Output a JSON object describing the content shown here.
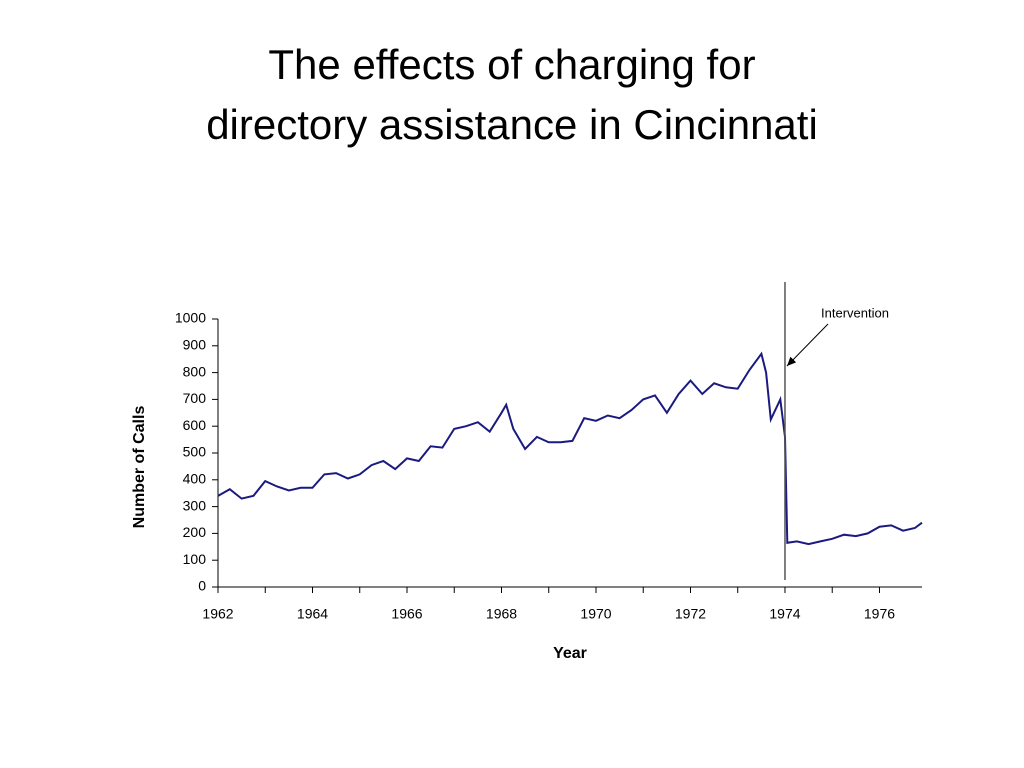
{
  "chart_data": {
    "type": "line",
    "title": "The effects of charging for directory assistance in Cincinnati",
    "x_label": "Year",
    "y_label": "Number of Calls",
    "annotation": {
      "text": "Intervention",
      "x": 1974
    },
    "x": [
      1962,
      1962.25,
      1962.5,
      1962.75,
      1963,
      1963.25,
      1963.5,
      1963.75,
      1964,
      1964.25,
      1964.5,
      1964.75,
      1965,
      1965.25,
      1965.5,
      1965.75,
      1966,
      1966.25,
      1966.5,
      1966.75,
      1967,
      1967.25,
      1967.5,
      1967.75,
      1968,
      1968.1,
      1968.25,
      1968.5,
      1968.75,
      1969,
      1969.25,
      1969.5,
      1969.75,
      1970,
      1970.25,
      1970.5,
      1970.75,
      1971,
      1971.25,
      1971.5,
      1971.75,
      1972,
      1972.25,
      1972.5,
      1972.75,
      1973,
      1973.25,
      1973.5,
      1973.6,
      1973.7,
      1973.9,
      1974,
      1974.05,
      1974.25,
      1974.5,
      1974.75,
      1975,
      1975.25,
      1975.5,
      1975.75,
      1976,
      1976.25,
      1976.5,
      1976.75,
      1976.9
    ],
    "series": [
      {
        "name": "Number of Calls",
        "color": "#1a1a80",
        "values": [
          340,
          365,
          330,
          340,
          395,
          375,
          360,
          370,
          370,
          420,
          425,
          405,
          420,
          455,
          470,
          440,
          480,
          470,
          525,
          520,
          590,
          600,
          615,
          580,
          650,
          680,
          590,
          515,
          560,
          540,
          540,
          545,
          630,
          620,
          640,
          630,
          660,
          700,
          715,
          650,
          720,
          770,
          720,
          760,
          745,
          740,
          810,
          870,
          800,
          625,
          700,
          560,
          165,
          170,
          160,
          170,
          180,
          195,
          190,
          200,
          225,
          230,
          210,
          220,
          240
        ]
      }
    ],
    "xlim": [
      1962,
      1976.9
    ],
    "xticks": [
      1962,
      1964,
      1966,
      1968,
      1970,
      1972,
      1974,
      1976
    ],
    "xminorticks": [
      1963,
      1965,
      1967,
      1969,
      1971,
      1973,
      1975
    ],
    "ylim": [
      0,
      1000
    ],
    "yticks": [
      0,
      100,
      200,
      300,
      400,
      500,
      600,
      700,
      800,
      900,
      1000
    ]
  }
}
